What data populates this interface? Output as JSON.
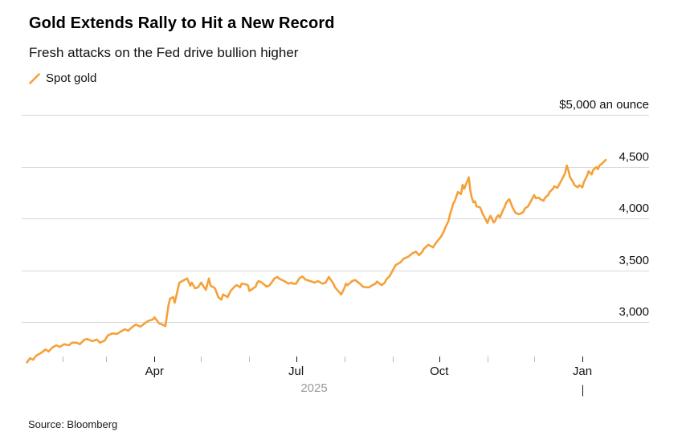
{
  "colors": {
    "accent": "#F5A13A",
    "grid": "#D8D8D8",
    "text": "#111111",
    "muted_text": "#9B9B9B",
    "minor_tick": "#B8B8B8",
    "major_tick": "#1A1A1A",
    "background": "#FFFFFF"
  },
  "footer": {
    "source": "Source: Bloomberg"
  },
  "chart_data": {
    "type": "line",
    "title": "Gold Extends Rally to Hit a New Record",
    "subtitle": "Fresh attacks on the Fed drive bullion higher",
    "source": "Source: Bloomberg",
    "legend_position": "top-left",
    "grid": "horizontal",
    "x_axis": {
      "range": [
        "2025-01-09",
        "2026-01-16"
      ],
      "year_label": "2025",
      "year_boundary": "2026-01-01",
      "ticks": [
        {
          "date": "2025-02-01",
          "label": "",
          "major": false
        },
        {
          "date": "2025-03-01",
          "label": "",
          "major": false
        },
        {
          "date": "2025-04-01",
          "label": "Apr",
          "major": true
        },
        {
          "date": "2025-05-01",
          "label": "",
          "major": false
        },
        {
          "date": "2025-06-01",
          "label": "",
          "major": false
        },
        {
          "date": "2025-07-01",
          "label": "Jul",
          "major": true
        },
        {
          "date": "2025-08-01",
          "label": "",
          "major": false
        },
        {
          "date": "2025-09-01",
          "label": "",
          "major": false
        },
        {
          "date": "2025-10-01",
          "label": "Oct",
          "major": true
        },
        {
          "date": "2025-11-01",
          "label": "",
          "major": false
        },
        {
          "date": "2025-12-01",
          "label": "",
          "major": false
        },
        {
          "date": "2026-01-01",
          "label": "Jan",
          "major": true
        }
      ]
    },
    "y_axis": {
      "side": "right",
      "range": [
        2560,
        5050
      ],
      "unit_label": "$5,000 an ounce",
      "gridline_values": [
        3000,
        3500,
        4000,
        4500,
        5000
      ],
      "labels": [
        {
          "value": 4500,
          "label": "4,500"
        },
        {
          "value": 4000,
          "label": "4,000"
        },
        {
          "value": 3500,
          "label": "3,500"
        },
        {
          "value": 3000,
          "label": "3,000"
        }
      ]
    },
    "series": [
      {
        "name": "Spot gold",
        "color": "#F5A13A",
        "points": [
          [
            "2025-01-09",
            2610
          ],
          [
            "2025-01-11",
            2650
          ],
          [
            "2025-01-13",
            2635
          ],
          [
            "2025-01-15",
            2675
          ],
          [
            "2025-01-18",
            2700
          ],
          [
            "2025-01-21",
            2735
          ],
          [
            "2025-01-23",
            2715
          ],
          [
            "2025-01-25",
            2750
          ],
          [
            "2025-01-28",
            2775
          ],
          [
            "2025-01-30",
            2760
          ],
          [
            "2025-02-02",
            2785
          ],
          [
            "2025-02-05",
            2775
          ],
          [
            "2025-02-07",
            2800
          ],
          [
            "2025-02-10",
            2800
          ],
          [
            "2025-02-12",
            2785
          ],
          [
            "2025-02-15",
            2830
          ],
          [
            "2025-02-17",
            2835
          ],
          [
            "2025-02-20",
            2815
          ],
          [
            "2025-02-23",
            2830
          ],
          [
            "2025-02-25",
            2800
          ],
          [
            "2025-02-28",
            2820
          ],
          [
            "2025-03-02",
            2870
          ],
          [
            "2025-03-05",
            2890
          ],
          [
            "2025-03-08",
            2885
          ],
          [
            "2025-03-10",
            2905
          ],
          [
            "2025-03-13",
            2930
          ],
          [
            "2025-03-15",
            2915
          ],
          [
            "2025-03-18",
            2955
          ],
          [
            "2025-03-20",
            2975
          ],
          [
            "2025-03-23",
            2955
          ],
          [
            "2025-03-26",
            2990
          ],
          [
            "2025-03-28",
            3010
          ],
          [
            "2025-03-31",
            3025
          ],
          [
            "2025-04-01",
            3045
          ],
          [
            "2025-04-04",
            2985
          ],
          [
            "2025-04-06",
            2975
          ],
          [
            "2025-04-08",
            2960
          ],
          [
            "2025-04-10",
            3165
          ],
          [
            "2025-04-11",
            3225
          ],
          [
            "2025-04-13",
            3240
          ],
          [
            "2025-04-14",
            3185
          ],
          [
            "2025-04-17",
            3380
          ],
          [
            "2025-04-20",
            3405
          ],
          [
            "2025-04-22",
            3420
          ],
          [
            "2025-04-24",
            3350
          ],
          [
            "2025-04-25",
            3380
          ],
          [
            "2025-04-27",
            3325
          ],
          [
            "2025-04-29",
            3335
          ],
          [
            "2025-05-01",
            3380
          ],
          [
            "2025-05-02",
            3355
          ],
          [
            "2025-05-04",
            3310
          ],
          [
            "2025-05-06",
            3420
          ],
          [
            "2025-05-07",
            3350
          ],
          [
            "2025-05-09",
            3335
          ],
          [
            "2025-05-10",
            3320
          ],
          [
            "2025-05-12",
            3240
          ],
          [
            "2025-05-14",
            3215
          ],
          [
            "2025-05-15",
            3265
          ],
          [
            "2025-05-17",
            3250
          ],
          [
            "2025-05-18",
            3240
          ],
          [
            "2025-05-20",
            3300
          ],
          [
            "2025-05-23",
            3350
          ],
          [
            "2025-05-24",
            3355
          ],
          [
            "2025-05-26",
            3335
          ],
          [
            "2025-05-27",
            3370
          ],
          [
            "2025-05-29",
            3365
          ],
          [
            "2025-05-31",
            3355
          ],
          [
            "2025-06-01",
            3300
          ],
          [
            "2025-06-03",
            3320
          ],
          [
            "2025-06-05",
            3340
          ],
          [
            "2025-06-06",
            3380
          ],
          [
            "2025-06-07",
            3395
          ],
          [
            "2025-06-09",
            3380
          ],
          [
            "2025-06-11",
            3355
          ],
          [
            "2025-06-12",
            3340
          ],
          [
            "2025-06-14",
            3355
          ],
          [
            "2025-06-16",
            3395
          ],
          [
            "2025-06-17",
            3420
          ],
          [
            "2025-06-19",
            3435
          ],
          [
            "2025-06-20",
            3420
          ],
          [
            "2025-06-22",
            3405
          ],
          [
            "2025-06-24",
            3390
          ],
          [
            "2025-06-26",
            3370
          ],
          [
            "2025-06-28",
            3380
          ],
          [
            "2025-06-29",
            3370
          ],
          [
            "2025-07-01",
            3370
          ],
          [
            "2025-07-03",
            3420
          ],
          [
            "2025-07-05",
            3440
          ],
          [
            "2025-07-07",
            3410
          ],
          [
            "2025-07-10",
            3395
          ],
          [
            "2025-07-13",
            3380
          ],
          [
            "2025-07-15",
            3395
          ],
          [
            "2025-07-18",
            3370
          ],
          [
            "2025-07-20",
            3380
          ],
          [
            "2025-07-22",
            3435
          ],
          [
            "2025-07-25",
            3370
          ],
          [
            "2025-07-26",
            3335
          ],
          [
            "2025-07-28",
            3300
          ],
          [
            "2025-07-30",
            3265
          ],
          [
            "2025-08-01",
            3325
          ],
          [
            "2025-08-02",
            3370
          ],
          [
            "2025-08-03",
            3355
          ],
          [
            "2025-08-05",
            3380
          ],
          [
            "2025-08-06",
            3395
          ],
          [
            "2025-08-08",
            3405
          ],
          [
            "2025-08-11",
            3370
          ],
          [
            "2025-08-13",
            3340
          ],
          [
            "2025-08-15",
            3335
          ],
          [
            "2025-08-17",
            3335
          ],
          [
            "2025-08-19",
            3355
          ],
          [
            "2025-08-21",
            3370
          ],
          [
            "2025-08-22",
            3390
          ],
          [
            "2025-08-25",
            3355
          ],
          [
            "2025-08-27",
            3380
          ],
          [
            "2025-08-28",
            3410
          ],
          [
            "2025-08-30",
            3440
          ],
          [
            "2025-09-01",
            3495
          ],
          [
            "2025-09-03",
            3550
          ],
          [
            "2025-09-06",
            3575
          ],
          [
            "2025-09-08",
            3610
          ],
          [
            "2025-09-11",
            3630
          ],
          [
            "2025-09-14",
            3665
          ],
          [
            "2025-09-16",
            3680
          ],
          [
            "2025-09-18",
            3645
          ],
          [
            "2025-09-20",
            3675
          ],
          [
            "2025-09-21",
            3705
          ],
          [
            "2025-09-24",
            3745
          ],
          [
            "2025-09-27",
            3720
          ],
          [
            "2025-09-29",
            3765
          ],
          [
            "2025-10-02",
            3820
          ],
          [
            "2025-10-04",
            3875
          ],
          [
            "2025-10-05",
            3915
          ],
          [
            "2025-10-07",
            3975
          ],
          [
            "2025-10-08",
            4045
          ],
          [
            "2025-10-09",
            4090
          ],
          [
            "2025-10-10",
            4140
          ],
          [
            "2025-10-11",
            4170
          ],
          [
            "2025-10-12",
            4210
          ],
          [
            "2025-10-13",
            4255
          ],
          [
            "2025-10-15",
            4235
          ],
          [
            "2025-10-16",
            4325
          ],
          [
            "2025-10-17",
            4285
          ],
          [
            "2025-10-20",
            4395
          ],
          [
            "2025-10-21",
            4270
          ],
          [
            "2025-10-22",
            4195
          ],
          [
            "2025-10-23",
            4155
          ],
          [
            "2025-10-24",
            4165
          ],
          [
            "2025-10-25",
            4115
          ],
          [
            "2025-10-27",
            4110
          ],
          [
            "2025-10-28",
            4080
          ],
          [
            "2025-10-29",
            4040
          ],
          [
            "2025-10-30",
            4015
          ],
          [
            "2025-10-31",
            3985
          ],
          [
            "2025-11-01",
            3955
          ],
          [
            "2025-11-02",
            4000
          ],
          [
            "2025-11-03",
            4025
          ],
          [
            "2025-11-04",
            3990
          ],
          [
            "2025-11-05",
            3960
          ],
          [
            "2025-11-06",
            3975
          ],
          [
            "2025-11-07",
            4015
          ],
          [
            "2025-11-08",
            4030
          ],
          [
            "2025-11-09",
            4010
          ],
          [
            "2025-11-10",
            4045
          ],
          [
            "2025-11-11",
            4080
          ],
          [
            "2025-11-12",
            4110
          ],
          [
            "2025-11-13",
            4150
          ],
          [
            "2025-11-14",
            4170
          ],
          [
            "2025-11-15",
            4185
          ],
          [
            "2025-11-16",
            4150
          ],
          [
            "2025-11-17",
            4110
          ],
          [
            "2025-11-18",
            4080
          ],
          [
            "2025-11-19",
            4055
          ],
          [
            "2025-11-21",
            4040
          ],
          [
            "2025-11-22",
            4045
          ],
          [
            "2025-11-24",
            4060
          ],
          [
            "2025-11-25",
            4095
          ],
          [
            "2025-11-27",
            4115
          ],
          [
            "2025-11-28",
            4140
          ],
          [
            "2025-11-29",
            4170
          ],
          [
            "2025-12-01",
            4225
          ],
          [
            "2025-12-02",
            4195
          ],
          [
            "2025-12-04",
            4200
          ],
          [
            "2025-12-05",
            4185
          ],
          [
            "2025-12-07",
            4170
          ],
          [
            "2025-12-08",
            4200
          ],
          [
            "2025-12-10",
            4225
          ],
          [
            "2025-12-11",
            4255
          ],
          [
            "2025-12-13",
            4285
          ],
          [
            "2025-12-14",
            4310
          ],
          [
            "2025-12-16",
            4295
          ],
          [
            "2025-12-17",
            4325
          ],
          [
            "2025-12-19",
            4380
          ],
          [
            "2025-12-21",
            4440
          ],
          [
            "2025-12-22",
            4510
          ],
          [
            "2025-12-23",
            4465
          ],
          [
            "2025-12-24",
            4400
          ],
          [
            "2025-12-26",
            4350
          ],
          [
            "2025-12-27",
            4320
          ],
          [
            "2025-12-29",
            4300
          ],
          [
            "2025-12-30",
            4320
          ],
          [
            "2026-01-01",
            4300
          ],
          [
            "2026-01-02",
            4350
          ],
          [
            "2026-01-04",
            4410
          ],
          [
            "2026-01-05",
            4455
          ],
          [
            "2026-01-07",
            4425
          ],
          [
            "2026-01-08",
            4470
          ],
          [
            "2026-01-10",
            4495
          ],
          [
            "2026-01-11",
            4475
          ],
          [
            "2026-01-12",
            4510
          ],
          [
            "2026-01-14",
            4535
          ],
          [
            "2026-01-15",
            4550
          ],
          [
            "2026-01-16",
            4565
          ]
        ]
      }
    ]
  }
}
